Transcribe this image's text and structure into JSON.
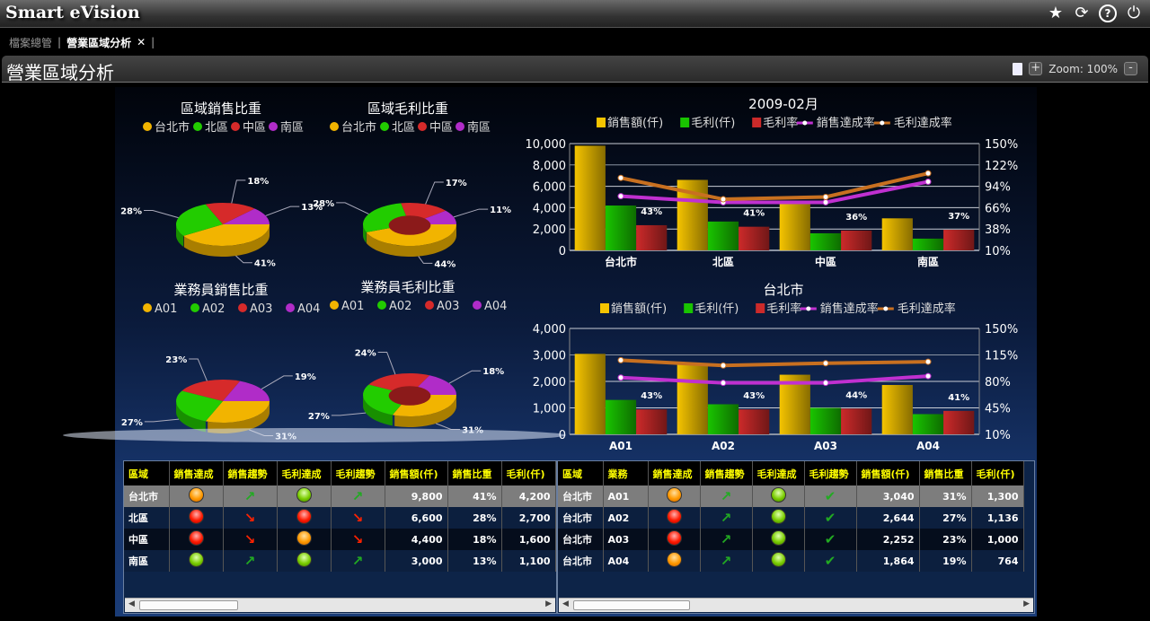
{
  "app": {
    "title": "Smart eVision",
    "icons": [
      "star-icon",
      "refresh-icon",
      "help-icon",
      "power-icon"
    ]
  },
  "tabs": {
    "items": [
      {
        "label": "檔案總管"
      },
      {
        "label": "營業區域分析"
      }
    ],
    "close": "✕"
  },
  "page": {
    "title": "營業區域分析",
    "zoom": "Zoom: 100%",
    "zoom_in": "+",
    "zoom_out": "-"
  },
  "chart_data": [
    {
      "type": "pie",
      "title": "區域銷售比重",
      "categories": [
        "台北市",
        "北區",
        "中區",
        "南區"
      ],
      "values": [
        41,
        28,
        18,
        13
      ],
      "labels": [
        "41%",
        "28%",
        "18%",
        "13%"
      ],
      "colors": [
        "#f2b400",
        "#22cc00",
        "#d62a2a",
        "#b02cc8"
      ]
    },
    {
      "type": "pie",
      "title": "區域毛利比重",
      "donut": true,
      "categories": [
        "台北市",
        "北區",
        "中區",
        "南區"
      ],
      "values": [
        44,
        28,
        17,
        11
      ],
      "labels": [
        "44%",
        "28%",
        "17%",
        "11%"
      ],
      "colors": [
        "#f2b400",
        "#22cc00",
        "#d62a2a",
        "#b02cc8"
      ]
    },
    {
      "type": "pie",
      "title": "業務員銷售比重",
      "categories": [
        "A01",
        "A02",
        "A03",
        "A04"
      ],
      "values": [
        31,
        27,
        23,
        19
      ],
      "labels": [
        "31%",
        "27%",
        "23%",
        "19%"
      ],
      "colors": [
        "#f2b400",
        "#22cc00",
        "#d62a2a",
        "#b02cc8"
      ]
    },
    {
      "type": "pie",
      "title": "業務員毛利比重",
      "donut": true,
      "categories": [
        "A01",
        "A02",
        "A03",
        "A04"
      ],
      "values": [
        31,
        27,
        24,
        18
      ],
      "labels": [
        "31%",
        "27%",
        "24%",
        "18%"
      ],
      "colors": [
        "#f2b400",
        "#22cc00",
        "#d62a2a",
        "#b02cc8"
      ]
    },
    {
      "type": "bar",
      "title": "2009-02月",
      "categories": [
        "台北市",
        "北區",
        "中區",
        "南區"
      ],
      "ylim": [
        0,
        10000
      ],
      "yticks": [
        "0",
        "2,000",
        "4,000",
        "6,000",
        "8,000",
        "10,000"
      ],
      "y2lim": [
        10,
        150
      ],
      "y2ticks": [
        "10%",
        "38%",
        "66%",
        "94%",
        "122%",
        "150%"
      ],
      "legend": "top",
      "series": [
        {
          "name": "銷售額(仟)",
          "type": "bar",
          "axis": "left",
          "values": [
            9800,
            6600,
            4400,
            3000
          ],
          "color": "#f5c400"
        },
        {
          "name": "毛利(仟)",
          "type": "bar",
          "axis": "left",
          "values": [
            4200,
            2700,
            1600,
            1100
          ],
          "color": "#19c400"
        },
        {
          "name": "毛利率",
          "type": "bar",
          "axis": "right",
          "values": [
            43,
            41,
            36,
            37
          ],
          "labels": [
            "43%",
            "41%",
            "36%",
            "37%"
          ],
          "color": "#cc2a2a"
        },
        {
          "name": "銷售達成率",
          "type": "line",
          "axis": "right",
          "values": [
            81,
            73,
            73,
            100
          ],
          "color": "#c030d0"
        },
        {
          "name": "毛利達成率",
          "type": "line",
          "axis": "right",
          "values": [
            105,
            77,
            80,
            111
          ],
          "color": "#c87020"
        }
      ]
    },
    {
      "type": "bar",
      "title": "台北市",
      "categories": [
        "A01",
        "A02",
        "A03",
        "A04"
      ],
      "ylim": [
        0,
        4000
      ],
      "yticks": [
        "0",
        "1,000",
        "2,000",
        "3,000",
        "4,000"
      ],
      "y2lim": [
        10,
        150
      ],
      "y2ticks": [
        "10%",
        "45%",
        "80%",
        "115%",
        "150%"
      ],
      "legend": "top",
      "series": [
        {
          "name": "銷售額(仟)",
          "type": "bar",
          "axis": "left",
          "values": [
            3040,
            2644,
            2252,
            1864
          ],
          "color": "#f5c400"
        },
        {
          "name": "毛利(仟)",
          "type": "bar",
          "axis": "left",
          "values": [
            1300,
            1136,
            1000,
            764
          ],
          "color": "#19c400"
        },
        {
          "name": "毛利率",
          "type": "bar",
          "axis": "right",
          "values": [
            43,
            43,
            44,
            41
          ],
          "labels": [
            "43%",
            "43%",
            "44%",
            "41%"
          ],
          "color": "#cc2a2a"
        },
        {
          "name": "銷售達成率",
          "type": "line",
          "axis": "right",
          "values": [
            85,
            78,
            78,
            87
          ],
          "color": "#c030d0"
        },
        {
          "name": "毛利達成率",
          "type": "line",
          "axis": "right",
          "values": [
            108,
            101,
            104,
            106
          ],
          "color": "#c87020"
        }
      ]
    }
  ],
  "region_table": {
    "headers": [
      "區域",
      "銷售達成",
      "銷售趨勢",
      "毛利達成",
      "毛利趨勢",
      "銷售額(仟)",
      "銷售比重",
      "毛利(仟)"
    ],
    "rows": [
      [
        "台北市",
        "orange",
        "up",
        "green",
        "up",
        "9,800",
        "41%",
        "4,200"
      ],
      [
        "北區",
        "red",
        "down",
        "red",
        "down",
        "6,600",
        "28%",
        "2,700"
      ],
      [
        "中區",
        "red",
        "down",
        "orange",
        "down",
        "4,400",
        "18%",
        "1,600"
      ],
      [
        "南區",
        "green",
        "up",
        "green",
        "up",
        "3,000",
        "13%",
        "1,100"
      ]
    ]
  },
  "rep_table": {
    "headers": [
      "區域",
      "業務",
      "銷售達成",
      "銷售趨勢",
      "毛利達成",
      "毛利趨勢",
      "銷售額(仟)",
      "銷售比重",
      "毛利(仟)"
    ],
    "rows": [
      [
        "台北市",
        "A01",
        "orange",
        "up",
        "green",
        "check",
        "3,040",
        "31%",
        "1,300"
      ],
      [
        "台北市",
        "A02",
        "red",
        "up",
        "green",
        "check",
        "2,644",
        "27%",
        "1,136"
      ],
      [
        "台北市",
        "A03",
        "red",
        "up",
        "green",
        "check",
        "2,252",
        "23%",
        "1,000"
      ],
      [
        "台北市",
        "A04",
        "orange",
        "up",
        "green",
        "check",
        "1,864",
        "19%",
        "764"
      ]
    ]
  }
}
